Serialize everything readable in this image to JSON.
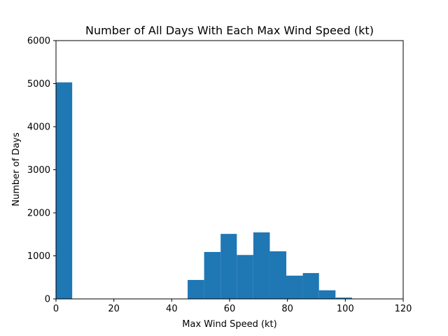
{
  "chart_data": {
    "type": "bar",
    "title": "Number of All Days With Each Max Wind Speed (kt)",
    "xlabel": "Max Wind Speed (kt)",
    "ylabel": "Number of Days",
    "xlim": [
      0,
      120
    ],
    "ylim": [
      0,
      6000
    ],
    "xticks": [
      0,
      20,
      40,
      60,
      80,
      100,
      120
    ],
    "yticks": [
      0,
      1000,
      2000,
      3000,
      4000,
      5000,
      6000
    ],
    "bar_color": "#1f77b4",
    "bins": [
      {
        "x0": 0,
        "x1": 5.6,
        "value": 5030
      },
      {
        "x0": 45.5,
        "x1": 51.2,
        "value": 440
      },
      {
        "x0": 51.2,
        "x1": 56.9,
        "value": 1090
      },
      {
        "x0": 56.9,
        "x1": 62.5,
        "value": 1510
      },
      {
        "x0": 62.5,
        "x1": 68.2,
        "value": 1020
      },
      {
        "x0": 68.2,
        "x1": 73.9,
        "value": 1545
      },
      {
        "x0": 73.9,
        "x1": 79.6,
        "value": 1105
      },
      {
        "x0": 79.6,
        "x1": 85.3,
        "value": 540
      },
      {
        "x0": 85.3,
        "x1": 90.9,
        "value": 600
      },
      {
        "x0": 90.9,
        "x1": 96.6,
        "value": 200
      },
      {
        "x0": 96.6,
        "x1": 102.3,
        "value": 30
      }
    ],
    "grid": false,
    "legend": "none"
  }
}
